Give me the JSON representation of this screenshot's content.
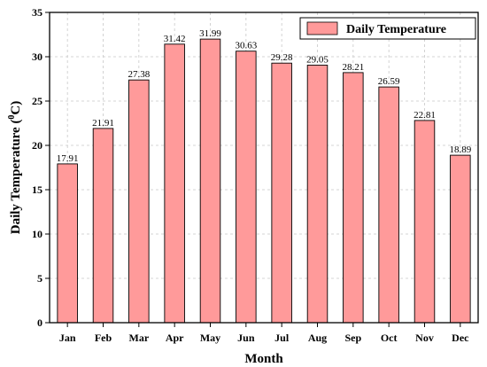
{
  "chart_data": {
    "type": "bar",
    "categories": [
      "Jan",
      "Feb",
      "Mar",
      "Apr",
      "May",
      "Jun",
      "Jul",
      "Aug",
      "Sep",
      "Oct",
      "Nov",
      "Dec"
    ],
    "series": [
      {
        "name": "Daily Temperature",
        "values": [
          17.91,
          21.91,
          27.38,
          31.42,
          31.99,
          30.63,
          29.28,
          29.05,
          28.21,
          26.59,
          22.81,
          18.89
        ],
        "color": "#FF9A9A"
      }
    ],
    "data_labels": [
      "17.91",
      "21.91",
      "27.38",
      "31.42",
      "31.99",
      "30.63",
      "29.28",
      "29.05",
      "28.21",
      "26.59",
      "22.81",
      "18.89"
    ],
    "xlabel": "Month",
    "ylabel_main": "Daily Temperature (",
    "ylabel_sup": "0",
    "ylabel_end": "C)",
    "ylim": [
      0,
      35
    ],
    "yticks": [
      "0",
      "5",
      "10",
      "15",
      "20",
      "25",
      "30",
      "35"
    ],
    "grid": true,
    "legend_position": "top-right"
  }
}
